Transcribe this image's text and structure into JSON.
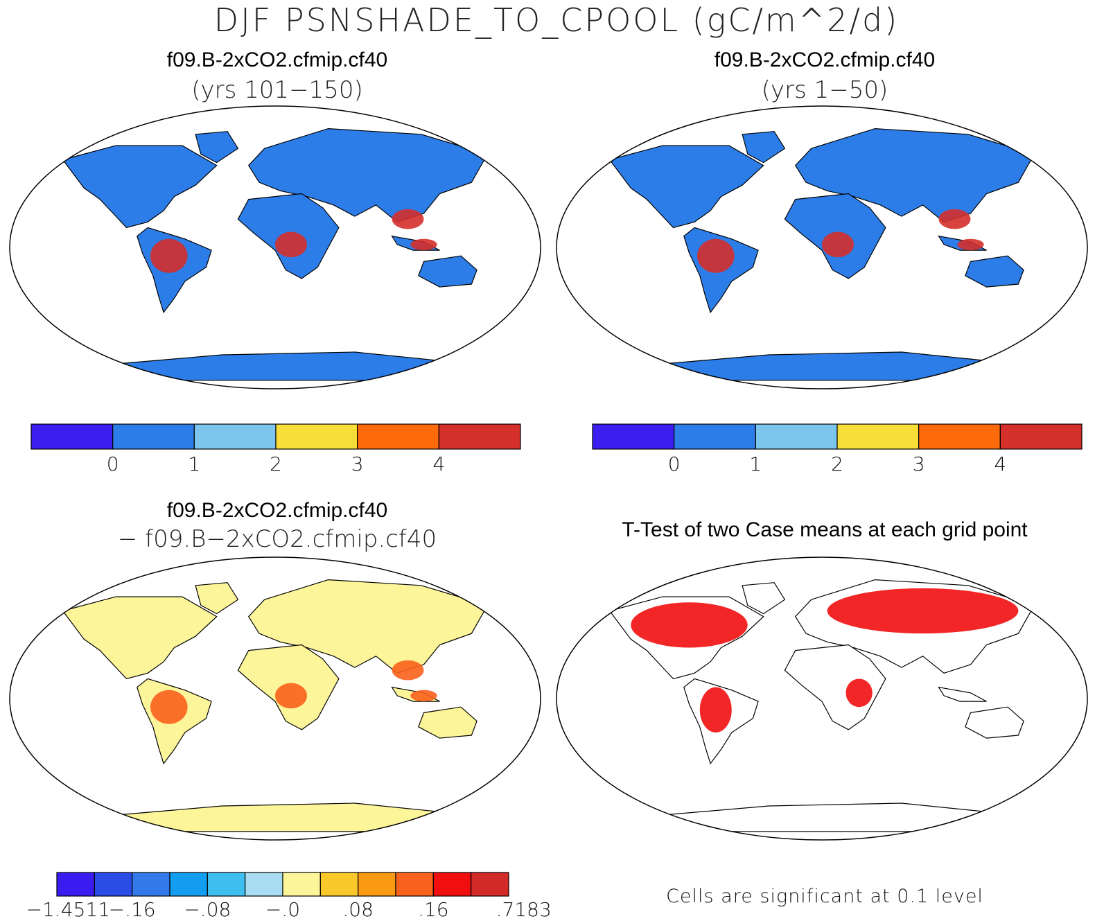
{
  "title": "DJF PSNSHADE_TO_CPOOL (gC/m^2/d)",
  "panels": [
    {
      "line1": "f09.B-2xCO2.cfmip.cf40",
      "line2": "(yrs 101−150)"
    },
    {
      "line1": "f09.B-2xCO2.cfmip.cf40",
      "line2": "(yrs 1−50)"
    },
    {
      "line1": "f09.B-2xCO2.cfmip.cf40",
      "line2": "− f09.B−2xCO2.cfmip.cf40"
    },
    {
      "line1": "T-Test of two Case means at each grid point"
    }
  ],
  "colorbars": {
    "mean": {
      "colors": [
        "#3c1ef0",
        "#2d7de8",
        "#7cc6ee",
        "#f9de3a",
        "#ff6a0a",
        "#d42f2a"
      ],
      "tick_labels": [
        "0",
        "1",
        "2",
        "3",
        "4"
      ]
    },
    "diff": {
      "colors": [
        "#3a1cf0",
        "#2a4de8",
        "#3479ea",
        "#129df0",
        "#3fbff0",
        "#a8dcf2",
        "#fdf59a",
        "#f9c82a",
        "#fa9a12",
        "#f9621c",
        "#f10e0e",
        "#d22a26"
      ],
      "tick_labels": [
        "−1.4511",
        "−.16",
        "−.08",
        "−.0",
        ".08",
        ".16",
        ".7183"
      ]
    }
  },
  "significance_note": "Cells are significant at 0.1 level",
  "colors": {
    "land_mean": "#2d7de8",
    "land_diff": "#fdf59a",
    "significant": "#f10e0e",
    "outline": "#000000"
  }
}
